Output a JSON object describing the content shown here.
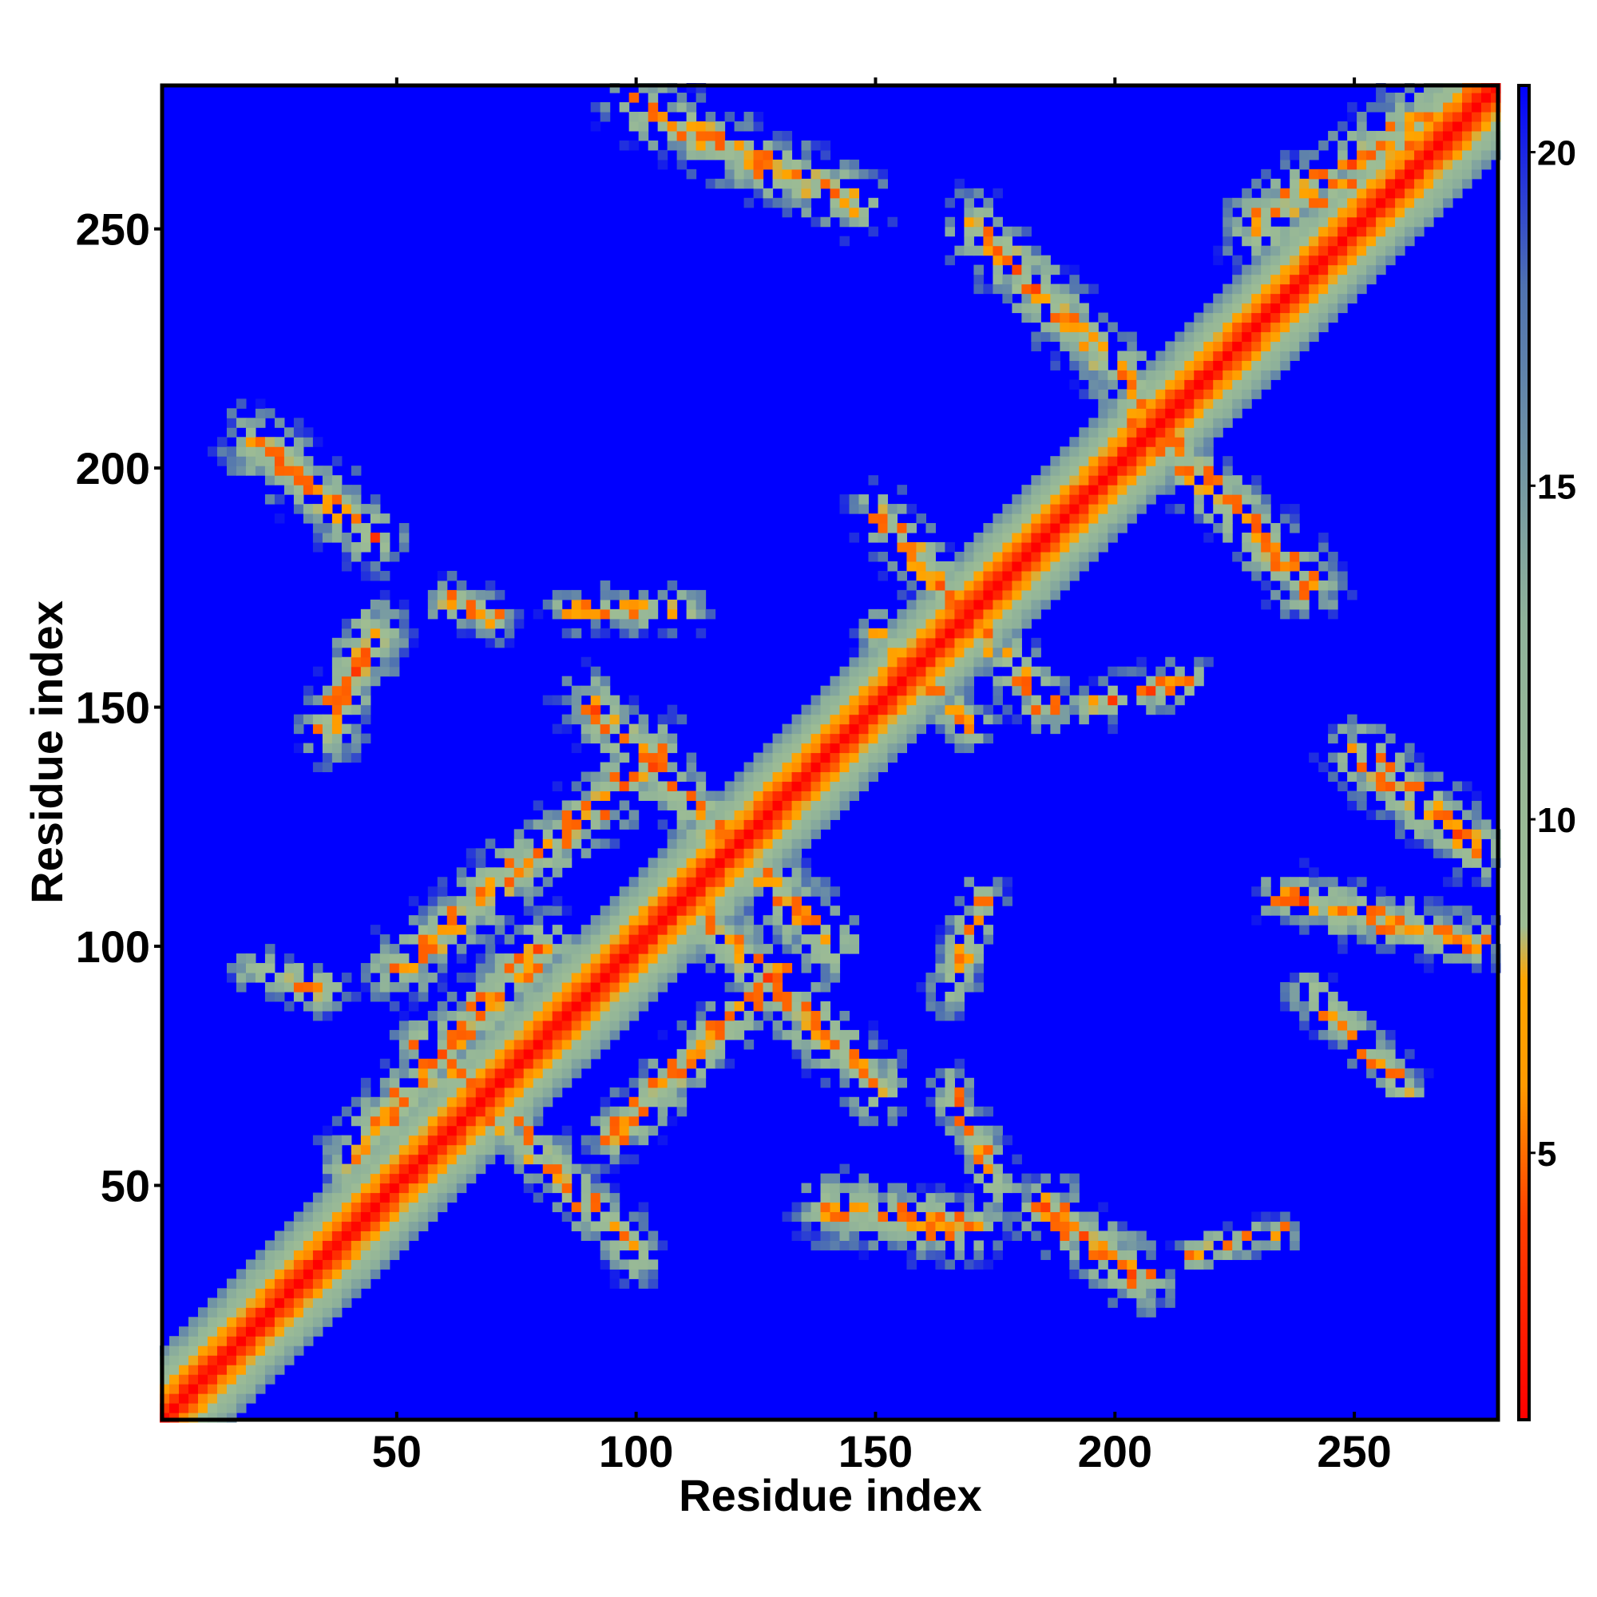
{
  "chart_data": {
    "type": "heatmap",
    "title": "",
    "xlabel": "Residue index",
    "ylabel": "Residue index",
    "xlim": [
      1,
      280
    ],
    "ylim": [
      1,
      280
    ],
    "x_ticks": [
      50,
      100,
      150,
      200,
      250
    ],
    "y_ticks": [
      50,
      100,
      150,
      200,
      250
    ],
    "colorbar": {
      "min": 1,
      "max": 21,
      "ticks": [
        5,
        10,
        15,
        20
      ],
      "stops": [
        {
          "value": 1,
          "color": "#ff0000"
        },
        {
          "value": 4,
          "color": "#ff4000"
        },
        {
          "value": 6,
          "color": "#ff9900"
        },
        {
          "value": 7.6,
          "color": "#ffa500"
        },
        {
          "value": 8.4,
          "color": "#9ebd94"
        },
        {
          "value": 13,
          "color": "#8fb29a"
        },
        {
          "value": 18,
          "color": "#4f72b0"
        },
        {
          "value": 21,
          "color": "#0000ff"
        }
      ]
    },
    "background_value": 21,
    "resolution": 2,
    "features": [
      {
        "kind": "diagonal",
        "from": 1,
        "to": 280
      },
      {
        "kind": "segment",
        "x1": 30,
        "y1": 30,
        "x2": 45,
        "y2": 45,
        "width": 4
      },
      {
        "kind": "segment",
        "x1": 55,
        "y1": 80,
        "x2": 100,
        "y2": 35,
        "width": 5
      },
      {
        "kind": "segment",
        "x1": 40,
        "y1": 55,
        "x2": 80,
        "y2": 100,
        "width": 6
      },
      {
        "kind": "segment",
        "x1": 50,
        "y1": 95,
        "x2": 105,
        "y2": 140,
        "width": 6
      },
      {
        "kind": "segment",
        "x1": 90,
        "y1": 150,
        "x2": 140,
        "y2": 100,
        "width": 6
      },
      {
        "kind": "segment",
        "x1": 110,
        "y1": 110,
        "x2": 150,
        "y2": 70,
        "width": 6
      },
      {
        "kind": "segment",
        "x1": 95,
        "y1": 60,
        "x2": 130,
        "y2": 95,
        "width": 5
      },
      {
        "kind": "segment",
        "x1": 150,
        "y1": 165,
        "x2": 170,
        "y2": 145,
        "width": 4
      },
      {
        "kind": "segment",
        "x1": 150,
        "y1": 190,
        "x2": 185,
        "y2": 150,
        "width": 5
      },
      {
        "kind": "segment",
        "x1": 170,
        "y1": 250,
        "x2": 205,
        "y2": 215,
        "width": 6
      },
      {
        "kind": "segment",
        "x1": 205,
        "y1": 210,
        "x2": 240,
        "y2": 175,
        "width": 6
      },
      {
        "kind": "segment",
        "x1": 230,
        "y1": 250,
        "x2": 275,
        "y2": 280,
        "width": 7
      },
      {
        "kind": "segment",
        "x1": 185,
        "y1": 45,
        "x2": 205,
        "y2": 30,
        "width": 6
      },
      {
        "kind": "segment",
        "x1": 140,
        "y1": 45,
        "x2": 170,
        "y2": 40,
        "width": 6
      },
      {
        "kind": "segment",
        "x1": 20,
        "y1": 205,
        "x2": 45,
        "y2": 185,
        "width": 6
      },
      {
        "kind": "segment",
        "x1": 35,
        "y1": 145,
        "x2": 45,
        "y2": 165,
        "width": 6
      },
      {
        "kind": "segment",
        "x1": 100,
        "y1": 275,
        "x2": 145,
        "y2": 255,
        "width": 6
      },
      {
        "kind": "segment",
        "x1": 250,
        "y1": 140,
        "x2": 275,
        "y2": 120,
        "width": 6
      },
      {
        "kind": "segment",
        "x1": 235,
        "y1": 110,
        "x2": 275,
        "y2": 100,
        "width": 5
      },
      {
        "kind": "segment",
        "x1": 165,
        "y1": 70,
        "x2": 175,
        "y2": 50,
        "width": 4
      },
      {
        "kind": "segment",
        "x1": 165,
        "y1": 90,
        "x2": 172,
        "y2": 110,
        "width": 4
      },
      {
        "kind": "segment",
        "x1": 60,
        "y1": 172,
        "x2": 70,
        "y2": 168,
        "width": 4
      },
      {
        "kind": "segment",
        "x1": 85,
        "y1": 170,
        "x2": 110,
        "y2": 170,
        "width": 4
      },
      {
        "kind": "segment",
        "x1": 20,
        "y1": 95,
        "x2": 35,
        "y2": 90,
        "width": 4
      },
      {
        "kind": "segment",
        "x1": 195,
        "y1": 150,
        "x2": 215,
        "y2": 155,
        "width": 4
      },
      {
        "kind": "segment",
        "x1": 240,
        "y1": 90,
        "x2": 260,
        "y2": 70,
        "width": 4
      },
      {
        "kind": "segment",
        "x1": 215,
        "y1": 35,
        "x2": 235,
        "y2": 40,
        "width": 3
      }
    ]
  }
}
